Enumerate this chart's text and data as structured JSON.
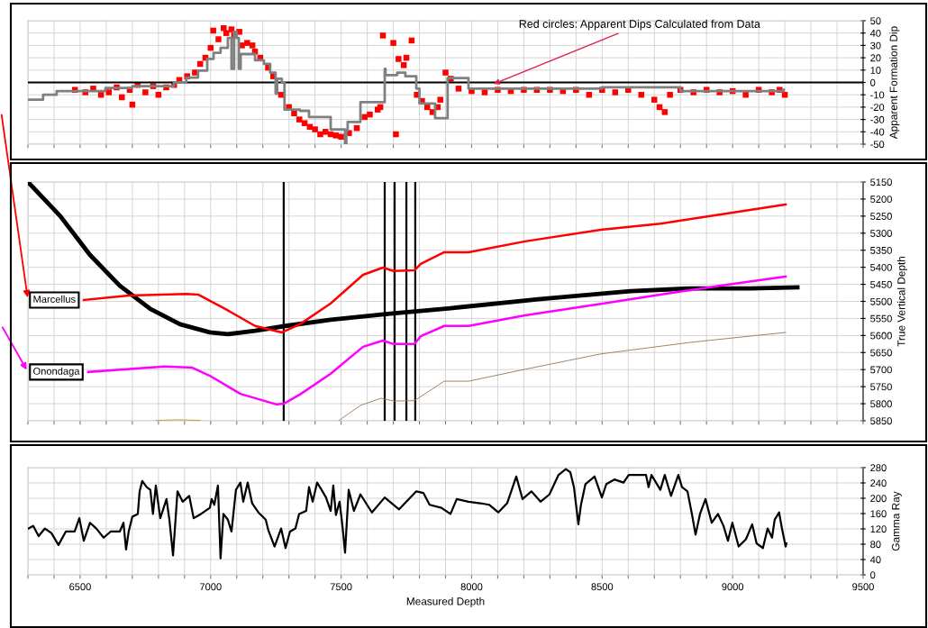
{
  "chart_data": [
    {
      "type": "scatter",
      "xlim": [
        6300,
        9500
      ],
      "ylim": [
        -50,
        50
      ],
      "ylabel": "Apparent Formation Dip",
      "tick_labels": "y",
      "grid": true,
      "legend": false,
      "yticks": [
        -50,
        -40,
        -30,
        -20,
        -10,
        0,
        10,
        20,
        30,
        40,
        50
      ],
      "ref_lines": [
        {
          "axis": "y",
          "value": 0,
          "color": "#000000"
        }
      ],
      "annotations": [
        {
          "text": "Red circles: Apparent Dips Calculated from Data",
          "x": 8075,
          "y": -2
        }
      ],
      "series": [
        {
          "type": "scatter",
          "marker": "square",
          "color": "#ff0000",
          "x": [
            6480,
            6520,
            6550,
            6580,
            6610,
            6640,
            6660,
            6690,
            6700,
            6720,
            6750,
            6780,
            6800,
            6830,
            6860,
            6880,
            6910,
            6940,
            6960,
            6980,
            7000,
            7010,
            7030,
            7050,
            7060,
            7080,
            7090,
            7110,
            7120,
            7140,
            7160,
            7170,
            7190,
            7220,
            7240,
            7270,
            7300,
            7320,
            7340,
            7360,
            7380,
            7400,
            7420,
            7440,
            7460,
            7480,
            7500,
            7530,
            7560,
            7590,
            7610,
            7640,
            7650,
            7660,
            7710,
            7700,
            7720,
            7740,
            7750,
            7770,
            7790,
            7810,
            7830,
            7850,
            7870,
            7880,
            7900,
            7920,
            7950,
            8000,
            8050,
            8100,
            8150,
            8200,
            8250,
            8300,
            8350,
            8400,
            8450,
            8500,
            8550,
            8600,
            8650,
            8700,
            8720,
            8740,
            8760,
            8800,
            8850,
            8900,
            8950,
            9000,
            9050,
            9100,
            9150,
            9180,
            9200
          ],
          "values": [
            -6,
            -8,
            -5,
            -10,
            -8,
            -4,
            -12,
            -6,
            -18,
            -2,
            -8,
            -3,
            -10,
            -4,
            -2,
            2,
            5,
            8,
            15,
            20,
            28,
            42,
            35,
            44,
            40,
            43,
            38,
            41,
            30,
            32,
            30,
            25,
            20,
            12,
            5,
            -10,
            -20,
            -25,
            -30,
            -33,
            -36,
            -38,
            -42,
            -40,
            -42,
            -43,
            -44,
            -41,
            -37,
            -28,
            -26,
            -22,
            -20,
            38,
            -42,
            32,
            19,
            14,
            20,
            34,
            -10,
            -15,
            -20,
            -24,
            -20,
            -14,
            8,
            3,
            -5,
            -7,
            -8,
            -6,
            -7,
            -6,
            -6,
            -6,
            -7,
            -6,
            -10,
            -6,
            -8,
            -6,
            -10,
            -14,
            -20,
            -24,
            -10,
            -6,
            -8,
            -6,
            -8,
            -7,
            -10,
            -6,
            -8,
            -6,
            -10
          ]
        },
        {
          "type": "step",
          "color": "#808080",
          "x": [
            6300,
            6358,
            6410,
            6597,
            6700,
            6859,
            6907,
            6952,
            6987,
            7011,
            7038,
            7066,
            7080,
            7090,
            7100,
            7108,
            7115,
            7170,
            7204,
            7228,
            7249,
            7255,
            7273,
            7283,
            7342,
            7377,
            7435,
            7460,
            7515,
            7520,
            7525,
            7563,
            7574,
            7660,
            7667,
            7670,
            7715,
            7746,
            7788,
            7800,
            7860,
            7895,
            7908,
            7988,
            8500,
            8800,
            9196
          ],
          "values": [
            -14,
            -10,
            -7,
            -4.5,
            -3,
            0,
            4,
            9.5,
            19,
            24,
            28,
            36,
            11,
            41,
            36,
            11,
            23,
            18,
            15,
            8,
            -9,
            3,
            0,
            -22,
            -23,
            -28,
            -28,
            -38,
            -50,
            -39,
            -32,
            -32,
            -16,
            -16,
            11,
            6,
            8,
            5,
            -5,
            -17,
            -29,
            -29,
            3.6,
            -5,
            -4,
            -7,
            -6
          ]
        }
      ]
    },
    {
      "type": "line",
      "xlim": [
        6300,
        9500
      ],
      "ylim": [
        5850,
        5150
      ],
      "ylabel": "True Vertical Depth",
      "tick_labels": "y",
      "grid": true,
      "legend": "left",
      "yticks": [
        5150,
        5200,
        5250,
        5300,
        5350,
        5400,
        5450,
        5500,
        5550,
        5600,
        5650,
        5700,
        5750,
        5800,
        5850
      ],
      "ref_lines": [
        {
          "axis": "x",
          "value": 7280,
          "color": "#000000"
        },
        {
          "axis": "x",
          "value": 7667,
          "color": "#000000"
        },
        {
          "axis": "x",
          "value": 7705,
          "color": "#000000"
        },
        {
          "axis": "x",
          "value": 7750,
          "color": "#000000"
        },
        {
          "axis": "x",
          "value": 7784,
          "color": "#000000"
        }
      ],
      "series": [
        {
          "color": "#000000",
          "x": [
            6300,
            6424,
            6538,
            6652,
            6769,
            6883,
            6997,
            7066,
            7170,
            7287,
            7460,
            7688,
            7919,
            8264,
            8609,
            8840,
            9068,
            9248
          ],
          "values": [
            5150,
            5250,
            5364,
            5454,
            5522,
            5567,
            5591,
            5596,
            5586,
            5572,
            5554,
            5536,
            5520,
            5493,
            5470,
            5462,
            5462,
            5459
          ]
        },
        {
          "name": "Marcellus",
          "color": "#ff0000",
          "x": [
            6514,
            6686,
            6907,
            6952,
            7056,
            7170,
            7273,
            7342,
            7460,
            7584,
            7660,
            7701,
            7781,
            7805,
            7895,
            7988,
            8205,
            8495,
            8723,
            8954,
            9203
          ],
          "values": [
            5496,
            5483,
            5478,
            5480,
            5522,
            5572,
            5591,
            5567,
            5506,
            5422,
            5401,
            5411,
            5409,
            5390,
            5356,
            5356,
            5324,
            5290,
            5272,
            5245,
            5216
          ]
        },
        {
          "name": "Onondaga",
          "color": "#ff00ff",
          "x": [
            6531,
            6824,
            6928,
            6997,
            7114,
            7253,
            7280,
            7342,
            7460,
            7584,
            7660,
            7701,
            7781,
            7805,
            7895,
            7988,
            8205,
            8495,
            8723,
            8954,
            9203
          ],
          "values": [
            5707,
            5691,
            5694,
            5718,
            5771,
            5802,
            5800,
            5773,
            5712,
            5633,
            5615,
            5625,
            5625,
            5602,
            5572,
            5572,
            5541,
            5507,
            5480,
            5454,
            5427
          ]
        },
        {
          "color": "#a08060",
          "x": [
            7490,
            7574,
            7653,
            7701,
            7781,
            7895,
            7988,
            8205,
            8495,
            8840,
            9203
          ],
          "values": [
            5850,
            5805,
            5784,
            5792,
            5791,
            5734,
            5734,
            5699,
            5654,
            5620,
            5591
          ]
        },
        {
          "color": "#b8a040",
          "x": [
            6790,
            6880,
            6960
          ],
          "values": [
            5849,
            5847,
            5849
          ]
        }
      ]
    },
    {
      "type": "line",
      "xlim": [
        6300,
        9500
      ],
      "ylim": [
        0,
        280
      ],
      "xlabel": "Measured Depth",
      "ylabel": "Gamma Ray",
      "grid": true,
      "legend": false,
      "xticks": [
        {
          "value": 6300,
          "label": null
        },
        {
          "value": 6400,
          "label": null
        },
        6500,
        {
          "value": 6600,
          "label": null
        },
        {
          "value": 6700,
          "label": null
        },
        {
          "value": 6800,
          "label": null
        },
        {
          "value": 6900,
          "label": null
        },
        7000,
        {
          "value": 7100,
          "label": null
        },
        {
          "value": 7200,
          "label": null
        },
        {
          "value": 7300,
          "label": null
        },
        {
          "value": 7400,
          "label": null
        },
        7500,
        {
          "value": 7600,
          "label": null
        },
        {
          "value": 7700,
          "label": null
        },
        {
          "value": 7800,
          "label": null
        },
        {
          "value": 7900,
          "label": null
        },
        8000,
        {
          "value": 8100,
          "label": null
        },
        {
          "value": 8200,
          "label": null
        },
        {
          "value": 8300,
          "label": null
        },
        {
          "value": 8400,
          "label": null
        },
        8500,
        {
          "value": 8600,
          "label": null
        },
        {
          "value": 8700,
          "label": null
        },
        {
          "value": 8800,
          "label": null
        },
        {
          "value": 8900,
          "label": null
        },
        9000,
        {
          "value": 9100,
          "label": null
        },
        {
          "value": 9200,
          "label": null
        },
        {
          "value": 9300,
          "label": null
        },
        {
          "value": 9400,
          "label": null
        },
        9500
      ],
      "yticks": [
        0,
        40,
        80,
        120,
        160,
        200,
        240,
        280
      ],
      "series": [
        {
          "color": "#000000",
          "x": [
            6303,
            6320,
            6341,
            6365,
            6390,
            6417,
            6445,
            6479,
            6497,
            6514,
            6538,
            6562,
            6590,
            6617,
            6652,
            6666,
            6676,
            6686,
            6700,
            6721,
            6728,
            6738,
            6755,
            6769,
            6779,
            6790,
            6807,
            6831,
            6842,
            6856,
            6873,
            6893,
            6918,
            6935,
            6963,
            6997,
            7004,
            7014,
            7028,
            7038,
            7049,
            7066,
            7080,
            7097,
            7114,
            7125,
            7142,
            7159,
            7183,
            7211,
            7221,
            7245,
            7270,
            7287,
            7304,
            7325,
            7339,
            7366,
            7377,
            7391,
            7408,
            7425,
            7442,
            7460,
            7470,
            7480,
            7494,
            7505,
            7515,
            7529,
            7549,
            7574,
            7618,
            7667,
            7722,
            7788,
            7815,
            7839,
            7884,
            7919,
            7943,
            7988,
            8033,
            8067,
            8102,
            8136,
            8171,
            8195,
            8229,
            8264,
            8298,
            8333,
            8361,
            8378,
            8392,
            8409,
            8419,
            8436,
            8471,
            8499,
            8516,
            8547,
            8582,
            8602,
            8668,
            8678,
            8689,
            8723,
            8740,
            8764,
            8792,
            8806,
            8827,
            8844,
            8858,
            8875,
            8896,
            8920,
            8944,
            8965,
            8982,
            8999,
            9023,
            9051,
            9075,
            9092,
            9116,
            9134,
            9151,
            9161,
            9178,
            9189,
            9203,
            9206
          ],
          "values": [
            121,
            128,
            101,
            121,
            109,
            78,
            113,
            113,
            148,
            89,
            136,
            121,
            97,
            113,
            113,
            136,
            66,
            113,
            152,
            159,
            218,
            245,
            229,
            222,
            159,
            233,
            148,
            198,
            144,
            51,
            218,
            191,
            206,
            148,
            159,
            175,
            198,
            183,
            233,
            43,
            159,
            144,
            113,
            222,
            241,
            191,
            241,
            187,
            163,
            144,
            117,
            74,
            121,
            70,
            113,
            121,
            159,
            167,
            229,
            191,
            241,
            222,
            202,
            167,
            233,
            156,
            191,
            128,
            58,
            222,
            167,
            210,
            163,
            202,
            171,
            218,
            214,
            183,
            175,
            159,
            198,
            191,
            187,
            183,
            163,
            187,
            257,
            198,
            218,
            191,
            210,
            261,
            276,
            268,
            229,
            132,
            183,
            237,
            257,
            202,
            237,
            249,
            241,
            261,
            261,
            229,
            261,
            222,
            261,
            206,
            261,
            229,
            218,
            159,
            105,
            159,
            198,
            136,
            159,
            128,
            89,
            136,
            74,
            93,
            132,
            82,
            70,
            121,
            97,
            144,
            163,
            121,
            74,
            82
          ]
        }
      ]
    }
  ]
}
